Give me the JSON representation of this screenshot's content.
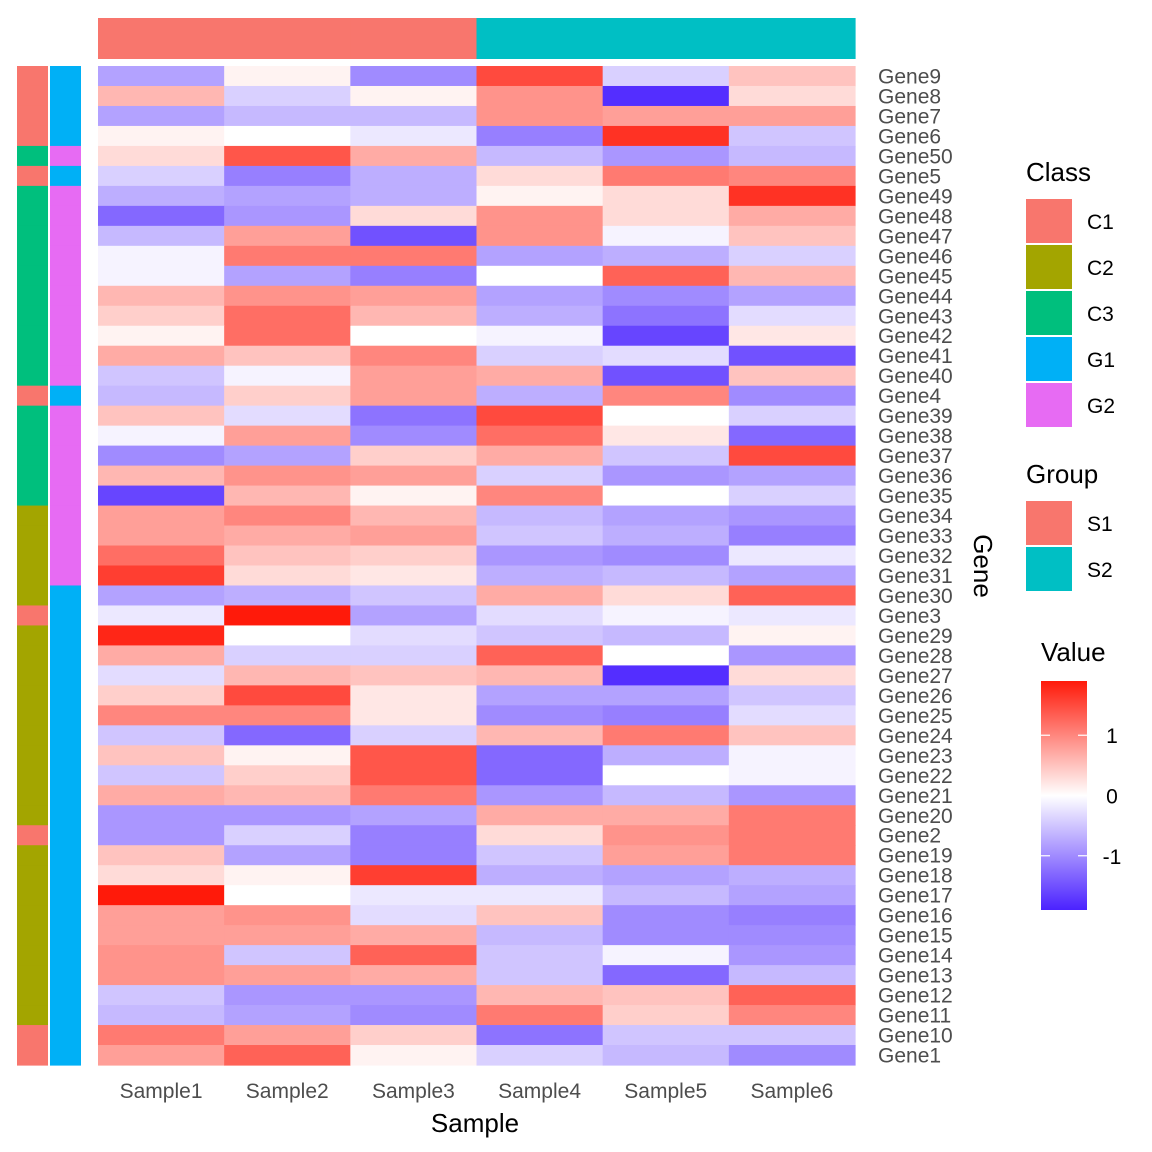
{
  "chart_data": {
    "type": "heatmap",
    "xlabel": "Sample",
    "ylabel": "Gene",
    "samples": [
      "Sample1",
      "Sample2",
      "Sample3",
      "Sample4",
      "Sample5",
      "Sample6"
    ],
    "genes": [
      "Gene9",
      "Gene8",
      "Gene7",
      "Gene6",
      "Gene50",
      "Gene5",
      "Gene49",
      "Gene48",
      "Gene47",
      "Gene46",
      "Gene45",
      "Gene44",
      "Gene43",
      "Gene42",
      "Gene41",
      "Gene40",
      "Gene4",
      "Gene39",
      "Gene38",
      "Gene37",
      "Gene36",
      "Gene35",
      "Gene34",
      "Gene33",
      "Gene32",
      "Gene31",
      "Gene30",
      "Gene3",
      "Gene29",
      "Gene28",
      "Gene27",
      "Gene26",
      "Gene25",
      "Gene24",
      "Gene23",
      "Gene22",
      "Gene21",
      "Gene20",
      "Gene2",
      "Gene19",
      "Gene18",
      "Gene17",
      "Gene16",
      "Gene15",
      "Gene14",
      "Gene13",
      "Gene12",
      "Gene11",
      "Gene10",
      "Gene1"
    ],
    "values": [
      [
        -0.8,
        0.1,
        -1.0,
        1.5,
        -0.4,
        0.5
      ],
      [
        0.6,
        -0.4,
        0.1,
        0.9,
        -1.8,
        0.3
      ],
      [
        -0.8,
        -0.6,
        -0.6,
        0.9,
        0.8,
        0.8
      ],
      [
        0.1,
        0.0,
        -0.2,
        -1.1,
        1.7,
        -0.5
      ],
      [
        0.3,
        1.4,
        0.7,
        -0.6,
        -0.9,
        -0.6
      ],
      [
        -0.4,
        -1.1,
        -0.7,
        0.3,
        1.1,
        1.0
      ],
      [
        -0.7,
        -0.8,
        -0.7,
        0.1,
        0.3,
        1.7
      ],
      [
        -1.3,
        -0.9,
        0.3,
        0.9,
        0.3,
        0.7
      ],
      [
        -0.6,
        0.8,
        -1.5,
        0.9,
        -0.1,
        0.5
      ],
      [
        -0.1,
        1.1,
        1.1,
        -0.8,
        -0.7,
        -0.4
      ],
      [
        -0.1,
        -0.8,
        -1.1,
        0.0,
        1.3,
        0.6
      ],
      [
        0.6,
        0.9,
        0.8,
        -0.8,
        -1.0,
        -0.8
      ],
      [
        0.4,
        1.2,
        0.6,
        -0.7,
        -1.2,
        -0.3
      ],
      [
        0.1,
        1.2,
        0.0,
        -0.1,
        -1.6,
        0.2
      ],
      [
        0.7,
        0.5,
        1.0,
        -0.4,
        -0.3,
        -1.5
      ],
      [
        -0.5,
        -0.1,
        0.8,
        0.7,
        -1.5,
        0.5
      ],
      [
        -0.6,
        0.4,
        0.8,
        -0.7,
        1.0,
        -1.0
      ],
      [
        0.5,
        -0.3,
        -1.2,
        1.5,
        0.0,
        -0.4
      ],
      [
        -0.1,
        0.8,
        -1.0,
        1.2,
        0.2,
        -1.3
      ],
      [
        -1.0,
        -0.8,
        0.4,
        0.7,
        -0.5,
        1.5
      ],
      [
        0.6,
        0.9,
        0.8,
        -0.4,
        -0.9,
        -0.8
      ],
      [
        -1.6,
        0.6,
        0.1,
        1.0,
        0.0,
        -0.4
      ],
      [
        0.8,
        1.0,
        0.6,
        -0.6,
        -0.8,
        -0.9
      ],
      [
        0.8,
        0.7,
        0.8,
        -0.5,
        -0.7,
        -1.1
      ],
      [
        1.2,
        0.5,
        0.4,
        -0.9,
        -1.0,
        -0.2
      ],
      [
        1.6,
        0.3,
        0.2,
        -0.7,
        -0.6,
        -0.8
      ],
      [
        -0.8,
        -0.7,
        -0.5,
        0.7,
        0.3,
        1.3
      ],
      [
        -0.2,
        1.9,
        -0.8,
        -0.3,
        -0.1,
        -0.2
      ],
      [
        1.8,
        0.0,
        -0.3,
        -0.5,
        -0.6,
        0.1
      ],
      [
        0.7,
        -0.4,
        -0.4,
        1.3,
        0.0,
        -0.9
      ],
      [
        -0.3,
        0.6,
        0.5,
        0.6,
        -1.8,
        0.3
      ],
      [
        0.4,
        1.5,
        0.2,
        -0.8,
        -0.8,
        -0.5
      ],
      [
        1.0,
        1.0,
        0.2,
        -1.0,
        -1.1,
        -0.3
      ],
      [
        -0.5,
        -1.3,
        -0.4,
        0.6,
        1.1,
        0.5
      ],
      [
        0.5,
        0.1,
        1.4,
        -1.3,
        -0.7,
        -0.1
      ],
      [
        -0.5,
        0.4,
        1.4,
        -1.3,
        0.0,
        -0.1
      ],
      [
        0.7,
        0.6,
        1.1,
        -0.9,
        -0.6,
        -0.9
      ],
      [
        -0.9,
        -0.9,
        -0.8,
        0.7,
        0.7,
        1.1
      ],
      [
        -0.9,
        -0.4,
        -1.1,
        0.3,
        0.9,
        1.1
      ],
      [
        0.5,
        -0.8,
        -1.1,
        -0.5,
        0.8,
        1.1
      ],
      [
        0.3,
        0.1,
        1.6,
        -0.7,
        -0.8,
        -0.7
      ],
      [
        1.9,
        0.0,
        -0.2,
        -0.2,
        -0.6,
        -0.8
      ],
      [
        0.8,
        0.9,
        -0.3,
        0.5,
        -1.0,
        -1.1
      ],
      [
        0.8,
        0.8,
        0.7,
        -0.6,
        -1.0,
        -1.0
      ],
      [
        0.9,
        -0.5,
        1.3,
        -0.5,
        -0.1,
        -0.9
      ],
      [
        0.9,
        0.8,
        0.7,
        -0.5,
        -1.3,
        -0.6
      ],
      [
        -0.5,
        -0.9,
        -0.9,
        0.6,
        0.5,
        1.3
      ],
      [
        -0.6,
        -0.8,
        -1.0,
        1.1,
        0.4,
        1.0
      ],
      [
        1.1,
        0.8,
        0.4,
        -1.2,
        -0.5,
        -0.5
      ],
      [
        0.8,
        1.3,
        0.1,
        -0.4,
        -0.6,
        -1.0
      ]
    ],
    "groups": [
      "S1",
      "S1",
      "S1",
      "S2",
      "S2",
      "S2"
    ],
    "gene_class": [
      "C1",
      "C1",
      "C1",
      "C1",
      "C3",
      "C1",
      "C3",
      "C3",
      "C3",
      "C3",
      "C3",
      "C3",
      "C3",
      "C3",
      "C3",
      "C3",
      "C1",
      "C3",
      "C3",
      "C3",
      "C3",
      "C3",
      "C2",
      "C2",
      "C2",
      "C2",
      "C2",
      "C1",
      "C2",
      "C2",
      "C2",
      "C2",
      "C2",
      "C2",
      "C2",
      "C2",
      "C2",
      "C2",
      "C1",
      "C2",
      "C2",
      "C2",
      "C2",
      "C2",
      "C2",
      "C2",
      "C2",
      "C2",
      "C1",
      "C1"
    ],
    "gene_group": [
      "G1",
      "G1",
      "G1",
      "G1",
      "G2",
      "G1",
      "G2",
      "G2",
      "G2",
      "G2",
      "G2",
      "G2",
      "G2",
      "G2",
      "G2",
      "G2",
      "G1",
      "G2",
      "G2",
      "G2",
      "G2",
      "G2",
      "G2",
      "G2",
      "G2",
      "G2",
      "G1",
      "G1",
      "G1",
      "G1",
      "G1",
      "G1",
      "G1",
      "G1",
      "G1",
      "G1",
      "G1",
      "G1",
      "G1",
      "G1",
      "G1",
      "G1",
      "G1",
      "G1",
      "G1",
      "G1",
      "G1",
      "G1",
      "G1",
      "G1"
    ],
    "color_scale": {
      "low": "#4b22ff",
      "mid": "#ffffff",
      "high": "#ff1a0a",
      "limits": [
        -1.9,
        1.9
      ],
      "breaks": [
        1,
        0,
        -1
      ]
    },
    "legends": [
      {
        "title": "Class",
        "entries": [
          {
            "label": "C1",
            "color": "#F8766D"
          },
          {
            "label": "C2",
            "color": "#A3A500"
          },
          {
            "label": "C3",
            "color": "#00BF7D"
          },
          {
            "label": "G1",
            "color": "#00B0F6"
          },
          {
            "label": "G2",
            "color": "#E76BF3"
          }
        ]
      },
      {
        "title": "Group",
        "entries": [
          {
            "label": "S1",
            "color": "#F8766D"
          },
          {
            "label": "S2",
            "color": "#00BFC4"
          }
        ]
      },
      {
        "title": "Value",
        "breaks": [
          "1",
          "0",
          "-1"
        ]
      }
    ]
  }
}
